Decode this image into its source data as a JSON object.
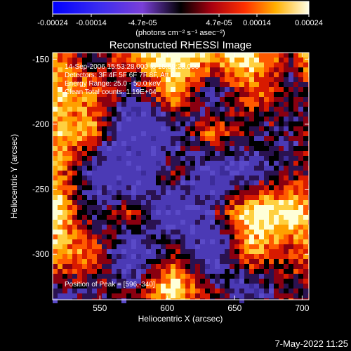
{
  "colorbar": {
    "tick_labels": [
      "-0.00024",
      "-0.00014",
      "-4.7e-05",
      "4.7e-05",
      "0.00014",
      "0.00024"
    ],
    "units": "(photons cm⁻² s⁻¹ asec⁻²)",
    "vmin": -0.00024,
    "vmax": 0.00024
  },
  "image": {
    "title": "Reconstructed RHESSI Image",
    "annotations": [
      "14-Sep-2006 15:53:28.000 to 15:59:28.000",
      "Detectors: 3F 4F 5F 6F 7F 8F, Att 0",
      "Energy Range: 25.0 - 50.0 keV",
      "Clean    Total counts: 1.19E+04"
    ],
    "peak_label": "Position of Peak = [596,-340]"
  },
  "axes": {
    "xlabel": "Heliocentric X (arcsec)",
    "ylabel": "Heliocentric Y (arcsec)",
    "xticks": [
      "550",
      "600",
      "650",
      "700"
    ],
    "yticks": [
      "-150",
      "-200",
      "-250",
      "-300"
    ],
    "xrange": [
      515,
      705
    ],
    "yrange": [
      -335,
      -145
    ]
  },
  "timestamp": "7-May-2022 11:25",
  "colors": {
    "background": "#000000",
    "text": "#ffffff",
    "map_low": "#4b3ab5",
    "map_high": "#ffffe0"
  }
}
